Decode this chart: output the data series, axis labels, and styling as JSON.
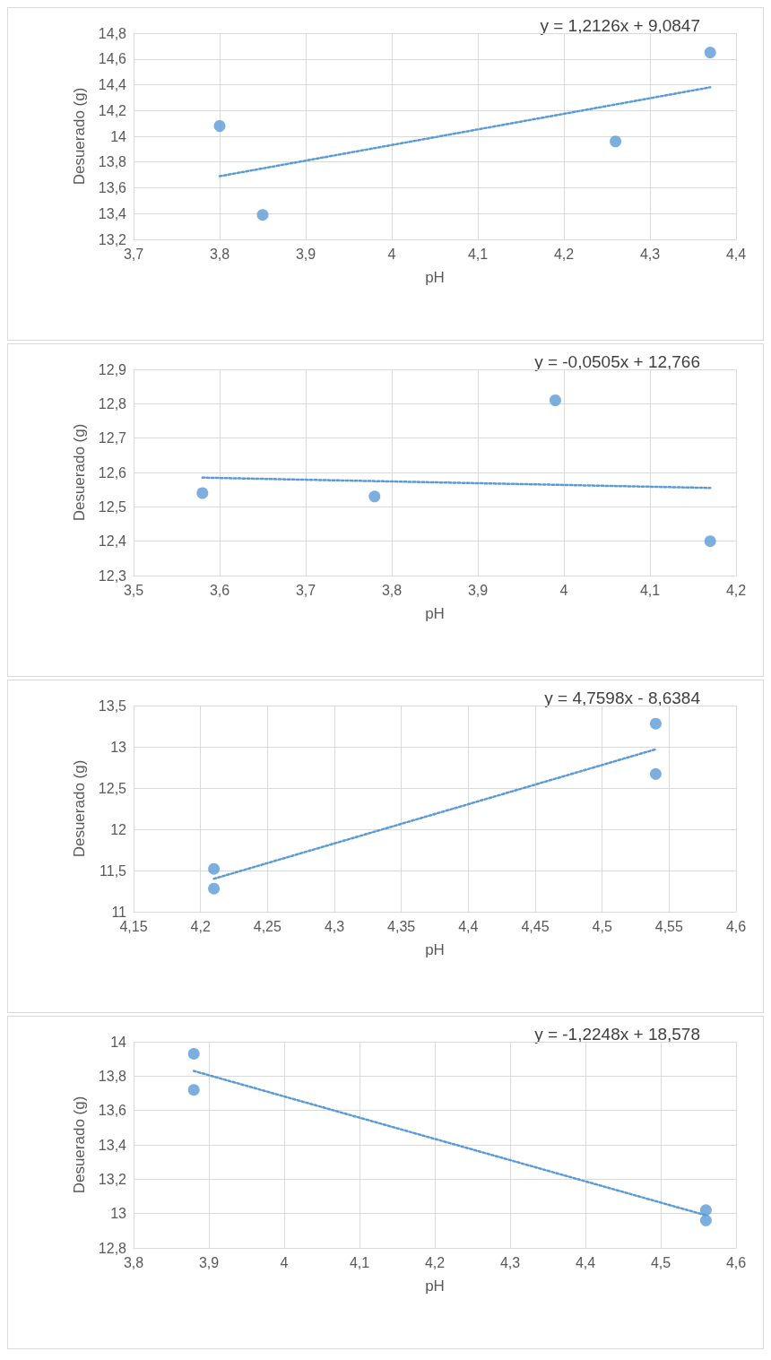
{
  "chart_data": [
    {
      "type": "scatter",
      "xlabel": "pH",
      "ylabel": "Desuerado (g)",
      "annotations": [
        "y = 1,2126x + 9,0847"
      ],
      "grid": true,
      "marker": "circle",
      "xlim": [
        3.7,
        4.4
      ],
      "xticks": [
        {
          "value": 3.7,
          "label": "3,7"
        },
        {
          "value": 3.8,
          "label": "3,8"
        },
        {
          "value": 3.9,
          "label": "3,9"
        },
        {
          "value": 4,
          "label": "4"
        },
        {
          "value": 4.1,
          "label": "4,1"
        },
        {
          "value": 4.2,
          "label": "4,2"
        },
        {
          "value": 4.3,
          "label": "4,3"
        },
        {
          "value": 4.4,
          "label": "4,4"
        }
      ],
      "ylim": [
        13.2,
        14.8
      ],
      "yticks": [
        {
          "value": 13.2,
          "label": "13,2"
        },
        {
          "value": 13.4,
          "label": "13,4"
        },
        {
          "value": 13.6,
          "label": "13,6"
        },
        {
          "value": 13.8,
          "label": "13,8"
        },
        14,
        {
          "value": 14.2,
          "label": "14,2"
        },
        {
          "value": 14.4,
          "label": "14,4"
        },
        {
          "value": 14.6,
          "label": "14,6"
        },
        {
          "value": 14.8,
          "label": "14,8"
        }
      ],
      "series": [
        {
          "type": "scatter",
          "color": "#5b9bd5",
          "x": [
            3.8,
            3.85,
            4.26,
            4.37
          ],
          "values": [
            14.08,
            13.39,
            13.96,
            14.65
          ]
        },
        {
          "type": "line",
          "color": "#5b9bd5",
          "line_style": "dotted",
          "marker": "none",
          "x": [
            3.8,
            4.37
          ],
          "values": [
            13.69,
            14.38
          ]
        }
      ]
    },
    {
      "type": "scatter",
      "xlabel": "pH",
      "ylabel": "Desuerado (g)",
      "annotations": [
        "y = -0,0505x + 12,766"
      ],
      "grid": true,
      "marker": "circle",
      "xlim": [
        3.5,
        4.2
      ],
      "xticks": [
        {
          "value": 3.5,
          "label": "3,5"
        },
        {
          "value": 3.6,
          "label": "3,6"
        },
        {
          "value": 3.7,
          "label": "3,7"
        },
        {
          "value": 3.8,
          "label": "3,8"
        },
        {
          "value": 3.9,
          "label": "3,9"
        },
        {
          "value": 4,
          "label": "4"
        },
        {
          "value": 4.1,
          "label": "4,1"
        },
        {
          "value": 4.2,
          "label": "4,2"
        }
      ],
      "ylim": [
        12.3,
        12.9
      ],
      "yticks": [
        {
          "value": 12.3,
          "label": "12,3"
        },
        {
          "value": 12.4,
          "label": "12,4"
        },
        {
          "value": 12.5,
          "label": "12,5"
        },
        {
          "value": 12.6,
          "label": "12,6"
        },
        {
          "value": 12.7,
          "label": "12,7"
        },
        {
          "value": 12.8,
          "label": "12,8"
        },
        {
          "value": 12.9,
          "label": "12,9"
        }
      ],
      "series": [
        {
          "type": "scatter",
          "color": "#5b9bd5",
          "x": [
            3.58,
            3.78,
            3.99,
            4.17
          ],
          "values": [
            12.54,
            12.53,
            12.81,
            12.4
          ]
        },
        {
          "type": "line",
          "color": "#5b9bd5",
          "line_style": "dotted",
          "marker": "none",
          "x": [
            3.58,
            4.17
          ],
          "values": [
            12.585,
            12.555
          ]
        }
      ]
    },
    {
      "type": "scatter",
      "xlabel": "pH",
      "ylabel": "Desuerado (g)",
      "annotations": [
        "y = 4,7598x - 8,6384"
      ],
      "grid": true,
      "marker": "circle",
      "xlim": [
        4.15,
        4.6
      ],
      "xticks": [
        {
          "value": 4.15,
          "label": "4,15"
        },
        {
          "value": 4.2,
          "label": "4,2"
        },
        {
          "value": 4.25,
          "label": "4,25"
        },
        {
          "value": 4.3,
          "label": "4,3"
        },
        {
          "value": 4.35,
          "label": "4,35"
        },
        {
          "value": 4.4,
          "label": "4,4"
        },
        {
          "value": 4.45,
          "label": "4,45"
        },
        {
          "value": 4.5,
          "label": "4,5"
        },
        {
          "value": 4.55,
          "label": "4,55"
        },
        {
          "value": 4.6,
          "label": "4,6"
        }
      ],
      "ylim": [
        11,
        13.5
      ],
      "yticks": [
        11,
        {
          "value": 11.5,
          "label": "11,5"
        },
        12,
        {
          "value": 12.5,
          "label": "12,5"
        },
        13,
        {
          "value": 13.5,
          "label": "13,5"
        }
      ],
      "series": [
        {
          "type": "scatter",
          "color": "#5b9bd5",
          "x": [
            4.21,
            4.21,
            4.54,
            4.54
          ],
          "values": [
            11.52,
            11.28,
            13.28,
            12.67
          ]
        },
        {
          "type": "line",
          "color": "#5b9bd5",
          "line_style": "dotted",
          "marker": "none",
          "x": [
            4.21,
            4.54
          ],
          "values": [
            11.4,
            12.97
          ]
        }
      ]
    },
    {
      "type": "scatter",
      "xlabel": "pH",
      "ylabel": "Desuerado (g)",
      "annotations": [
        "y = -1,2248x + 18,578"
      ],
      "grid": true,
      "marker": "circle",
      "xlim": [
        3.8,
        4.6
      ],
      "xticks": [
        {
          "value": 3.8,
          "label": "3,8"
        },
        {
          "value": 3.9,
          "label": "3,9"
        },
        {
          "value": 4,
          "label": "4"
        },
        {
          "value": 4.1,
          "label": "4,1"
        },
        {
          "value": 4.2,
          "label": "4,2"
        },
        {
          "value": 4.3,
          "label": "4,3"
        },
        {
          "value": 4.4,
          "label": "4,4"
        },
        {
          "value": 4.5,
          "label": "4,5"
        },
        {
          "value": 4.6,
          "label": "4,6"
        }
      ],
      "ylim": [
        12.8,
        14
      ],
      "yticks": [
        {
          "value": 12.8,
          "label": "12,8"
        },
        13,
        {
          "value": 13.2,
          "label": "13,2"
        },
        {
          "value": 13.4,
          "label": "13,4"
        },
        {
          "value": 13.6,
          "label": "13,6"
        },
        {
          "value": 13.8,
          "label": "13,8"
        },
        14
      ],
      "series": [
        {
          "type": "scatter",
          "color": "#5b9bd5",
          "x": [
            3.88,
            3.88,
            4.56,
            4.56
          ],
          "values": [
            13.93,
            13.72,
            13.02,
            12.96
          ]
        },
        {
          "type": "line",
          "color": "#5b9bd5",
          "line_style": "dotted",
          "marker": "none",
          "x": [
            3.88,
            4.56
          ],
          "values": [
            13.83,
            12.99
          ]
        }
      ]
    }
  ]
}
